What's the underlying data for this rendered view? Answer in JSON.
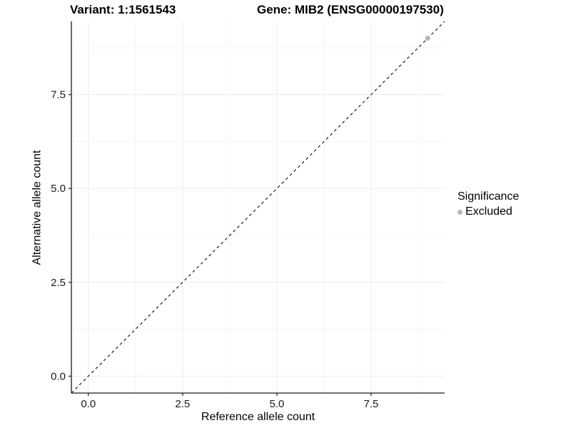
{
  "title": {
    "variant": "Variant: 1:1561543",
    "gene": "Gene: MIB2 (ENSG00000197530)"
  },
  "legend": {
    "title": "Significance",
    "items": [
      {
        "label": "Excluded",
        "color": "#b5b5b5"
      }
    ]
  },
  "colors": {
    "background": "#ffffff",
    "axis_line": "#1a1a1a",
    "tick_mark": "#1a1a1a",
    "tick_label": "#1a1a1a",
    "grid_major": "#ebebeb",
    "grid_minor": "#f5f5f5",
    "reference_line": "#1a1a1a",
    "point": "#b5b5b5"
  },
  "chart_data": {
    "type": "scatter",
    "title": "Variant: 1:1561543    Gene: MIB2 (ENSG00000197530)",
    "xlabel": "Reference allele count",
    "ylabel": "Alternative allele count",
    "xlim": [
      -0.45,
      9.45
    ],
    "ylim": [
      -0.45,
      9.45
    ],
    "x_ticks": [
      0.0,
      2.5,
      5.0,
      7.5
    ],
    "y_ticks": [
      0.0,
      2.5,
      5.0,
      7.5
    ],
    "x_tick_labels": [
      "0.0",
      "2.5",
      "5.0",
      "7.5"
    ],
    "y_tick_labels": [
      "0.0",
      "2.5",
      "5.0",
      "7.5"
    ],
    "x_minor_breaks": [
      1.25,
      3.75,
      6.25,
      8.75
    ],
    "y_minor_breaks": [
      1.25,
      3.75,
      6.25,
      8.75
    ],
    "grid": true,
    "legend_position": "right",
    "legend_title": "Significance",
    "series": [
      {
        "name": "Excluded",
        "color": "#b5b5b5",
        "point_radius": 3.5,
        "points": [
          [
            9,
            9
          ]
        ]
      }
    ],
    "reference_line": {
      "kind": "identity",
      "style": "dashed",
      "dash": [
        4,
        4
      ],
      "from": [
        -0.45,
        -0.45
      ],
      "to": [
        9.45,
        9.45
      ]
    }
  }
}
